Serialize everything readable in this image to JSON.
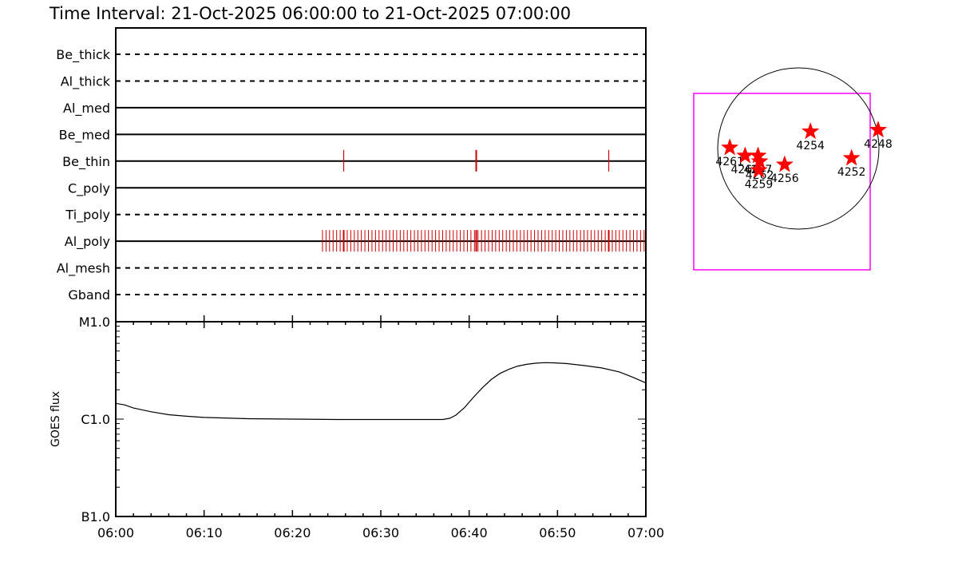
{
  "title": "Time Interval: 21-Oct-2025 06:00:00 to 21-Oct-2025 07:00:00",
  "chart_data": [
    {
      "type": "timeline",
      "x_start_min": 0,
      "x_end_min": 60,
      "filters": [
        {
          "name": "Be_thick",
          "style": "dashed",
          "events_min": []
        },
        {
          "name": "Al_thick",
          "style": "dashed",
          "events_min": []
        },
        {
          "name": "Al_med",
          "style": "solid",
          "events_min": []
        },
        {
          "name": "Be_med",
          "style": "solid",
          "events_min": []
        },
        {
          "name": "Be_thin",
          "style": "solid",
          "events_min": [
            25.8,
            40.8,
            55.8
          ]
        },
        {
          "name": "C_poly",
          "style": "solid",
          "events_min": []
        },
        {
          "name": "Ti_poly",
          "style": "dashed",
          "events_min": []
        },
        {
          "name": "Al_poly",
          "style": "solid",
          "events_min": [],
          "dense_range_min": [
            23.4,
            59.8
          ],
          "dense_count": 92,
          "highlight_min": [
            25.8,
            40.8,
            55.8
          ]
        },
        {
          "name": "Al_mesh",
          "style": "dashed",
          "events_min": []
        },
        {
          "name": "Gband",
          "style": "dashed",
          "events_min": []
        }
      ],
      "event_color": "#cc0000"
    },
    {
      "type": "line",
      "ylabel": "GOES flux",
      "yscale": "log",
      "ylim": [
        1e-07,
        1e-05
      ],
      "ytick_labels": [
        {
          "label": "M1.0",
          "value": 1e-05
        },
        {
          "label": "C1.0",
          "value": 1e-06
        },
        {
          "label": "B1.0",
          "value": 1e-07
        }
      ],
      "xticks": [
        "06:00",
        "06:10",
        "06:20",
        "06:30",
        "06:40",
        "06:50",
        "07:00"
      ],
      "x": [
        0,
        1,
        2,
        4,
        6,
        8,
        10,
        15,
        20,
        25,
        30,
        34,
        36,
        37,
        37.8,
        38.5,
        39.5,
        40.5,
        41.5,
        42.5,
        43.5,
        44.5,
        45.5,
        46.5,
        47.5,
        48.5,
        49.5,
        51,
        53,
        55,
        57,
        58.5,
        60
      ],
      "y": [
        1.45e-06,
        1.4e-06,
        1.3e-06,
        1.19e-06,
        1.11e-06,
        1.07e-06,
        1.04e-06,
        1.01e-06,
        1e-06,
        9.9e-07,
        9.9e-07,
        9.9e-07,
        9.9e-07,
        9.9e-07,
        1.02e-06,
        1.1e-06,
        1.32e-06,
        1.68e-06,
        2.1e-06,
        2.55e-06,
        2.95e-06,
        3.25e-06,
        3.5e-06,
        3.65e-06,
        3.75e-06,
        3.8e-06,
        3.78e-06,
        3.72e-06,
        3.55e-06,
        3.35e-06,
        3.05e-06,
        2.7e-06,
        2.35e-06
      ]
    },
    {
      "type": "scatter",
      "description_keys": [
        "solar disk map with NOAA active regions"
      ],
      "regions": [
        {
          "label": "4261",
          "x": -0.85,
          "y": 0.01
        },
        {
          "label": "4260",
          "x": -0.66,
          "y": -0.09
        },
        {
          "label": "4257",
          "x": -0.5,
          "y": -0.09
        },
        {
          "label": "4262",
          "x": -0.48,
          "y": -0.16
        },
        {
          "label": "4259",
          "x": -0.49,
          "y": -0.27
        },
        {
          "label": "4256",
          "x": -0.17,
          "y": -0.2
        },
        {
          "label": "4254",
          "x": 0.15,
          "y": 0.21
        },
        {
          "label": "4252",
          "x": 0.66,
          "y": -0.12
        },
        {
          "label": "4248",
          "x": 0.99,
          "y": 0.23
        }
      ],
      "marker_color": "#ff0000",
      "box_color": "#ff00ff"
    }
  ]
}
